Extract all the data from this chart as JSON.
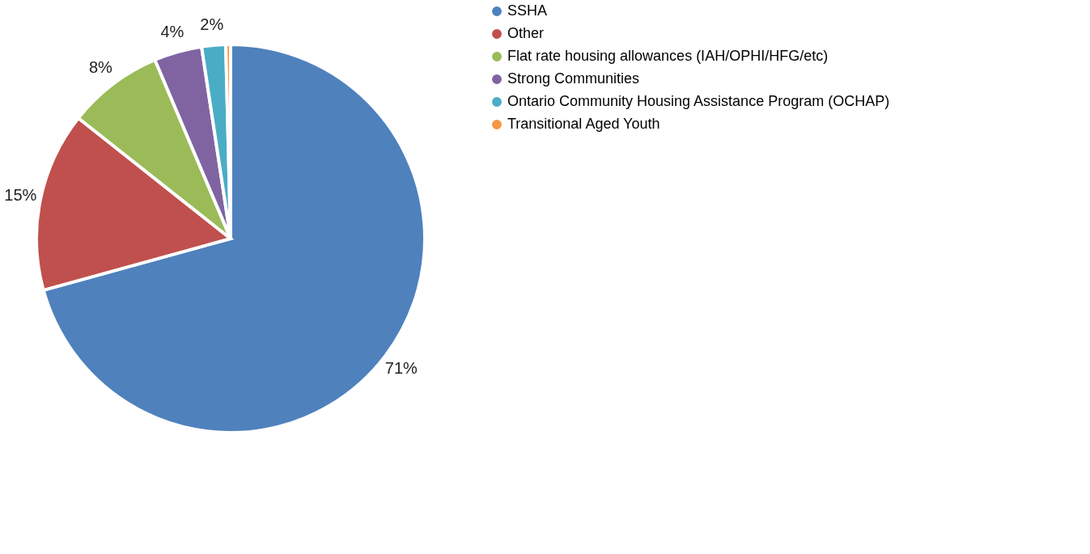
{
  "chart_data": {
    "type": "pie",
    "categories": [
      "SSHA",
      "Other",
      "Flat rate housing allowances (IAH/OPHI/HFG/etc)",
      "Strong Communities",
      "Ontario Community Housing Assistance Program (OCHAP)",
      "Transitional Aged Youth"
    ],
    "values": [
      71,
      15,
      8,
      4,
      2,
      0.4
    ],
    "value_labels": [
      "71%",
      "15%",
      "8%",
      "4%",
      "2%",
      null
    ],
    "colors": [
      "#4f81bd",
      "#c0504d",
      "#9bbb59",
      "#8064a2",
      "#4bacc6",
      "#f79646"
    ],
    "legend": "right"
  }
}
